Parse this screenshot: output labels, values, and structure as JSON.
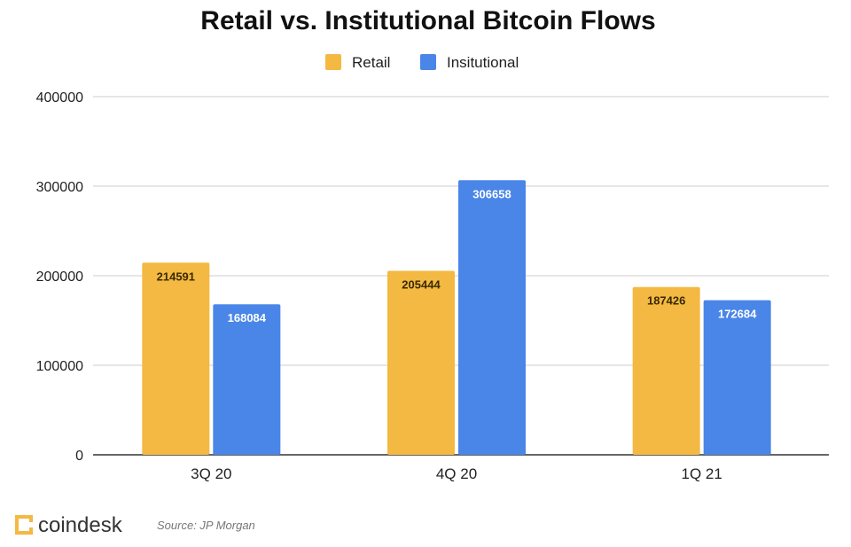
{
  "chart_data": {
    "type": "bar",
    "title": "Retail vs. Institutional Bitcoin Flows",
    "xlabel": "",
    "ylabel": "",
    "ylim": [
      0,
      400000
    ],
    "yticks": [
      0,
      100000,
      200000,
      300000,
      400000
    ],
    "grid": true,
    "legend_position": "top-center",
    "categories": [
      "3Q 20",
      "4Q 20",
      "1Q 21"
    ],
    "series": [
      {
        "name": "Retail",
        "color": "#F4B942",
        "label_color": "#3a2a00",
        "values": [
          214591,
          205444,
          187426
        ]
      },
      {
        "name": "Insitutional",
        "color": "#4A86E8",
        "label_color": "#ffffff",
        "values": [
          168084,
          306658,
          172684
        ]
      }
    ]
  },
  "footer": {
    "brand": "coindesk",
    "source": "Source: JP Morgan"
  }
}
